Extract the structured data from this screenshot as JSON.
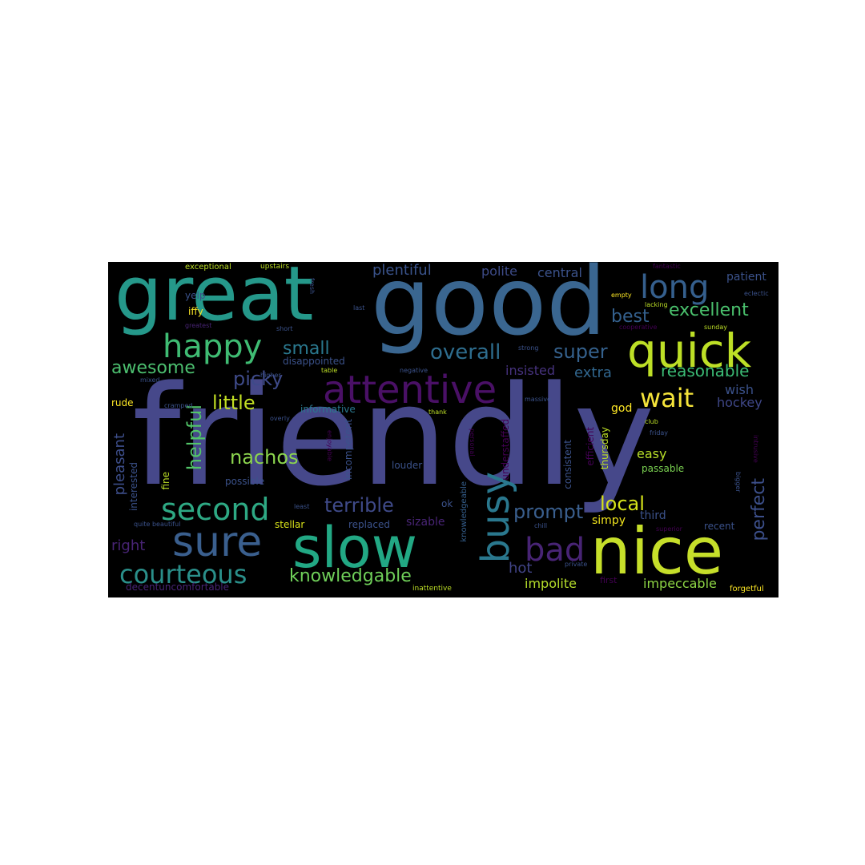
{
  "colors": {
    "background": "#000000",
    "page": "#ffffff",
    "palette": [
      "#440154",
      "#482475",
      "#414487",
      "#355f8d",
      "#2a788e",
      "#21918c",
      "#22a884",
      "#44bf70",
      "#7ad151",
      "#bddf26",
      "#fde725"
    ]
  },
  "words": {
    "friendly": "friendly",
    "good": "good",
    "great": "great",
    "nice": "nice",
    "slow": "slow",
    "quick": "quick",
    "attentive": "attentive",
    "sure": "sure",
    "busy": "busy",
    "long": "long",
    "happy": "happy",
    "second": "second",
    "courteous": "courteous",
    "bad": "bad",
    "wait": "wait",
    "knowledgable": "knowledgable",
    "overall": "overall",
    "terrible": "terrible",
    "prompt": "prompt",
    "awesome": "awesome",
    "nachos": "nachos",
    "little": "little",
    "super": "super",
    "excellent": "excellent",
    "best": "best",
    "reasonable": "reasonable",
    "small": "small",
    "picky": "picky",
    "helpful": "helpful",
    "local": "local",
    "perfect": "perfect",
    "extra": "extra",
    "pleasant": "pleasant",
    "hockey": "hockey",
    "plentiful": "plentiful",
    "polite": "polite",
    "central": "central",
    "patient": "patient",
    "right": "right",
    "hot": "hot",
    "impeccable": "impeccable",
    "impolite": "impolite",
    "insisted": "insisted",
    "wish": "wish",
    "easy": "easy",
    "god": "god",
    "disappointed": "disappointed",
    "informative": "informative",
    "incompetent": "incompetent",
    "fine": "fine",
    "interested": "interested",
    "louder": "louder",
    "possible": "possible",
    "sizable": "sizable",
    "replaced": "replaced",
    "stellar": "stellar",
    "simpy": "simpy",
    "third": "third",
    "recent": "recent",
    "passable": "passable",
    "consistent": "consistent",
    "thursday": "thursday",
    "efficient": "efficient",
    "understaffed": "understaffed",
    "knowledgeable": "knowledgeable",
    "ok": "ok",
    "decentuncomfortable": "decentuncomfortable",
    "first": "first",
    "forgetful": "forgetful",
    "inattentive": "inattentive",
    "iffy": "iffy",
    "yelp": "yelp",
    "rude": "rude",
    "exceptional": "exceptional",
    "upstairs": "upstairs",
    "fresh": "fresh",
    "last": "last",
    "empty": "empty",
    "cooperative": "cooperative",
    "short": "short",
    "greatest": "greatest",
    "higher": "higher",
    "table": "table",
    "negative": "negative",
    "mixed": "mixed",
    "cramped": "cramped",
    "thank": "thank",
    "massive": "massive",
    "overly": "overly",
    "enjoyable": "enjoyable",
    "personal": "personal",
    "least": "least",
    "quite_beautiful": "quite beautiful",
    "chill": "chill",
    "private": "private",
    "superior": "superior",
    "bigger": "bigger",
    "friday": "friday",
    "club": "club",
    "lacking": "lacking",
    "eclectic": "eclectic",
    "sunday": "sunday",
    "fantastic": "fantastic",
    "strong": "strong",
    "intrusive": "intrusive"
  }
}
